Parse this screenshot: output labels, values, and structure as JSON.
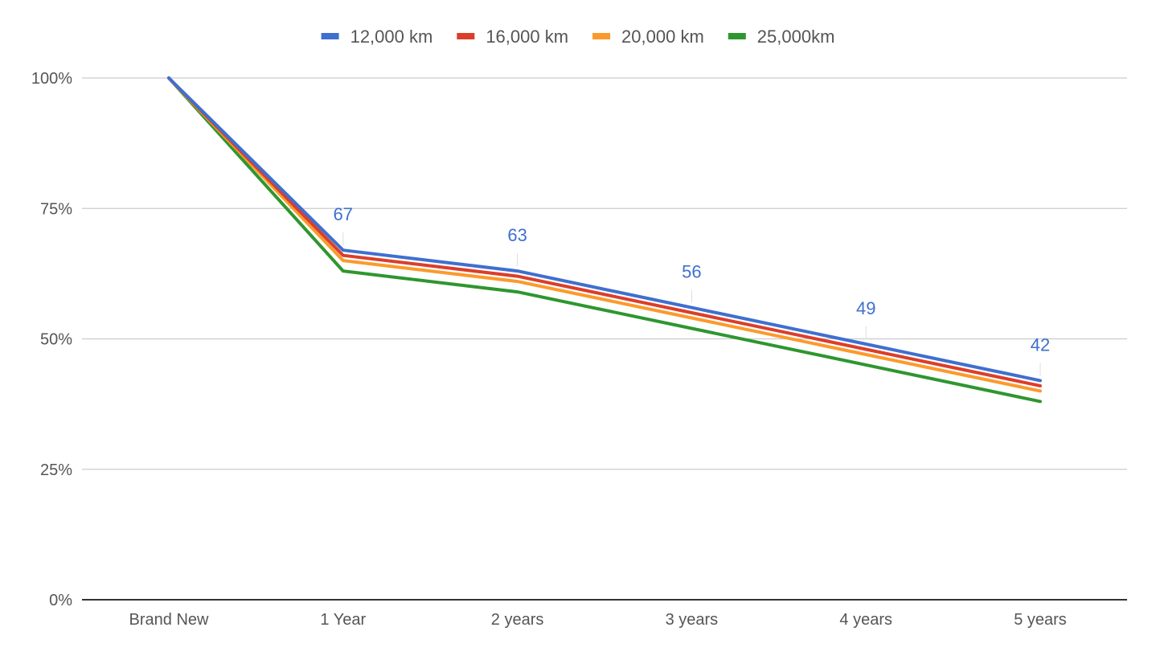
{
  "chart_data": {
    "type": "line",
    "title": "",
    "xlabel": "",
    "ylabel": "",
    "categories": [
      "Brand New",
      "1 Year",
      "2 years",
      "3 years",
      "4 years",
      "5 years"
    ],
    "ylim": [
      0,
      100
    ],
    "y_ticks": [
      {
        "value": 0,
        "label": "0%"
      },
      {
        "value": 25,
        "label": "25%"
      },
      {
        "value": 50,
        "label": "50%"
      },
      {
        "value": 75,
        "label": "75%"
      },
      {
        "value": 100,
        "label": "100%"
      }
    ],
    "grid": true,
    "legend_position": "top",
    "series": [
      {
        "name": "12,000 km",
        "color": "#3f6fcf",
        "values": [
          100,
          67,
          63,
          56,
          49,
          42
        ],
        "show_labels": true
      },
      {
        "name": "16,000 km",
        "color": "#db3e2a",
        "values": [
          100,
          66,
          62,
          55,
          48,
          41
        ],
        "show_labels": false
      },
      {
        "name": "20,000 km",
        "color": "#fb9a2c",
        "values": [
          100,
          65,
          61,
          54,
          47,
          40
        ],
        "show_labels": false
      },
      {
        "name": "25,000km",
        "color": "#2e962f",
        "values": [
          100,
          63,
          59,
          52,
          45,
          38
        ],
        "show_labels": false
      }
    ],
    "data_labels": [
      "",
      "67",
      "63",
      "56",
      "49",
      "42"
    ]
  }
}
